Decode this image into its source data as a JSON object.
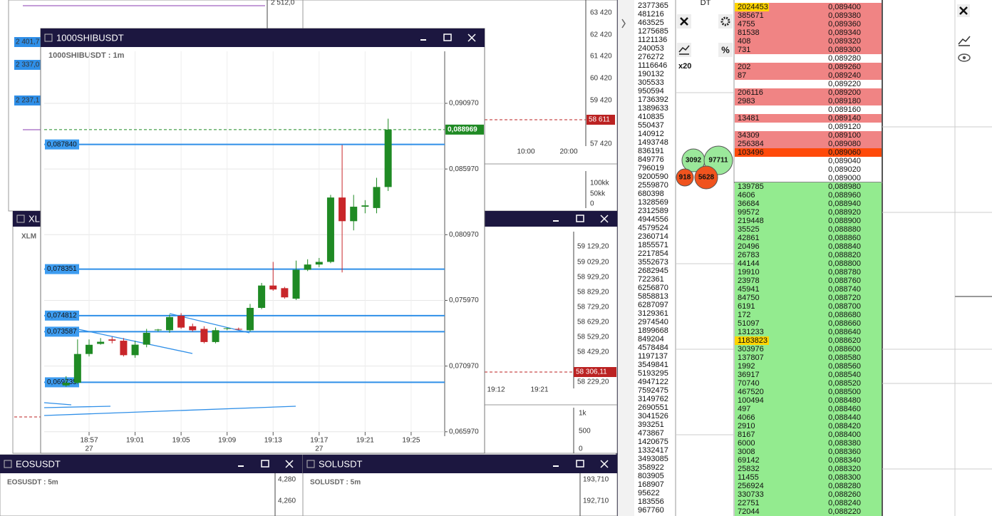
{
  "chart_data": {
    "type": "candlestick",
    "title": "1000SHIBUSDT : 1m",
    "x": [
      "18:55",
      "18:56",
      "18:57",
      "18:58",
      "18:59",
      "19:00",
      "19:01",
      "19:02",
      "19:03",
      "19:04",
      "19:05",
      "19:06",
      "19:07",
      "19:08",
      "19:09",
      "19:10",
      "19:11",
      "19:12",
      "19:13",
      "19:14",
      "19:15",
      "19:16",
      "19:17",
      "19:18",
      "19:19",
      "19:20",
      "19:21",
      "19:22",
      "19:23"
    ],
    "open": [
      0.0695,
      0.0697,
      0.07189,
      0.07266,
      0.073,
      0.0729,
      0.0718,
      0.0726,
      0.0737,
      0.0737,
      0.0748,
      0.074,
      0.0738,
      0.0728,
      0.0738,
      0.0738,
      0.0737,
      0.0754,
      0.0771,
      0.0769,
      0.0761,
      0.0783,
      0.0787,
      0.0789,
      0.0838,
      0.082,
      0.0831,
      0.083,
      0.0846
    ],
    "high": [
      0.0702,
      0.073,
      0.073,
      0.0731,
      0.0732,
      0.0731,
      0.0729,
      0.0738,
      0.0738,
      0.0749,
      0.075,
      0.0742,
      0.074,
      0.0739,
      0.0739,
      0.0739,
      0.0757,
      0.0773,
      0.0789,
      0.077,
      0.079,
      0.0791,
      0.0792,
      0.084,
      0.0878,
      0.084,
      0.0836,
      0.0853,
      0.0898
    ],
    "low": [
      0.0694,
      0.0696,
      0.0717,
      0.0726,
      0.0727,
      0.0717,
      0.0716,
      0.0724,
      0.0736,
      0.0735,
      0.0738,
      0.0736,
      0.0727,
      0.0727,
      0.0737,
      0.0737,
      0.0736,
      0.0753,
      0.0767,
      0.0761,
      0.076,
      0.0782,
      0.0785,
      0.0788,
      0.0781,
      0.0813,
      0.0826,
      0.0826,
      0.0843
    ],
    "close": [
      0.0697,
      0.07189,
      0.07259,
      0.07282,
      0.0729,
      0.0718,
      0.0726,
      0.0735,
      0.07375,
      0.0747,
      0.0739,
      0.0737,
      0.0728,
      0.0737,
      0.07385,
      0.07375,
      0.0754,
      0.0771,
      0.0768,
      0.0762,
      0.0783,
      0.0787,
      0.0789,
      0.0838,
      0.082,
      0.0831,
      0.0832,
      0.0846,
      0.08897
    ],
    "up_color": "#1f8a24",
    "down_color": "#c8262a",
    "xticks": [
      "18:57",
      "19:01",
      "19:05",
      "19:09",
      "19:13",
      "19:17",
      "19:21",
      "19:25"
    ],
    "date_labels": [
      {
        "at": "18:57",
        "label": "27"
      },
      {
        "at": "19:17",
        "label": "27"
      }
    ],
    "ylim": [
      0.0652,
      0.0952
    ],
    "yticks": [
      {
        "value": 0.09097,
        "label": "0,090970"
      },
      {
        "value": 0.08597,
        "label": "0,085970"
      },
      {
        "value": 0.08097,
        "label": "0,080970"
      },
      {
        "value": 0.07597,
        "label": "0,075970"
      },
      {
        "value": 0.07097,
        "label": "0,070970"
      },
      {
        "value": 0.06597,
        "label": "0,065970"
      }
    ],
    "grid": true,
    "current_price": {
      "value": 0.088969,
      "label": "0,088969",
      "color": "#1f8a24"
    },
    "levels": [
      {
        "value": 0.08784,
        "label": "0,087840"
      },
      {
        "value": 0.078351,
        "label": "0,078351"
      },
      {
        "value": 0.074812,
        "label": "0,074812"
      },
      {
        "value": 0.073587,
        "label": "0,073587"
      },
      {
        "value": 0.069735,
        "label": "0,069735"
      }
    ],
    "level_color": "#2f8fe8"
  },
  "windows": {
    "main": {
      "title": "1000SHIBUSDT"
    },
    "top_left": {
      "axis_labels": [
        "2 512,0"
      ],
      "price_tags": [
        "2 401,7",
        "2 337,0",
        "2 237,1"
      ]
    },
    "top_right": {
      "axis_labels": [
        "63 420",
        "62 420",
        "61 420",
        "60 420",
        "59 420",
        "57 420"
      ],
      "price_tag": "58 611",
      "time_labels": [
        "10:00",
        "20:00"
      ],
      "volume_labels": [
        "100kk",
        "50kk",
        "0"
      ]
    },
    "xl": {
      "title": "XL",
      "chart_label": "XLM",
      "axis_labels": [
        "59 129,20",
        "59 029,20",
        "58 929,20",
        "58 829,20",
        "58 729,20",
        "58 629,20",
        "58 529,20",
        "58 429,20",
        "58 229,20"
      ],
      "price_tag": "58 306,11",
      "time_labels": [
        "19:12",
        "19:21"
      ],
      "volume_labels": [
        "1k",
        "500",
        "0"
      ]
    },
    "eos": {
      "title": "EOSUSDT",
      "chart_label": "EOSUSDT : 5m",
      "axis_labels": [
        "4,280",
        "4,260"
      ]
    },
    "sol": {
      "title": "SOLUSDT",
      "chart_label": "SOLUSDT : 5m",
      "axis_labels": [
        "193,710",
        "192,710"
      ]
    }
  },
  "volume_column": [
    2377365,
    481216,
    463525,
    1275685,
    1121136,
    240053,
    276272,
    1116646,
    190132,
    305533,
    950594,
    1736392,
    1389633,
    410835,
    550437,
    140912,
    1493748,
    836191,
    849776,
    796019,
    9200590,
    2559870,
    680398,
    1328569,
    2312589,
    4944556,
    4579524,
    2360714,
    1855571,
    2217854,
    3552673,
    2682945,
    722361,
    6256870,
    5858813,
    6287097,
    3129361,
    2974540,
    1899668,
    849204,
    4578484,
    1197137,
    3549841,
    5193295,
    4947122,
    7592475,
    3149762,
    2690551,
    3041526,
    393251,
    473867,
    1420675,
    1332417,
    3493085,
    358922,
    803905,
    168907,
    95622,
    183556,
    967760
  ],
  "dom_panel": {
    "label": "DT",
    "leverage": "x20",
    "bubbles": [
      {
        "value": 3092,
        "color": "#9be89b"
      },
      {
        "value": 97711,
        "color": "#9be89b"
      },
      {
        "value": 918,
        "color": "#f0531e"
      },
      {
        "value": 5628,
        "color": "#f0531e"
      }
    ]
  },
  "order_book": {
    "ask_color": "#f08484",
    "bid_color": "#93eb8f",
    "asks": [
      {
        "price": "0,089400",
        "volume": 2024453,
        "highlight": "#ffd400"
      },
      {
        "price": "0,089380",
        "volume": 385671
      },
      {
        "price": "0,089360",
        "volume": 4755
      },
      {
        "price": "0,089340",
        "volume": 81538
      },
      {
        "price": "0,089320",
        "volume": 408
      },
      {
        "price": "0,089300",
        "volume": 731
      },
      {
        "price": "0,089280",
        "volume": null
      },
      {
        "price": "0,089260",
        "volume": 202
      },
      {
        "price": "0,089240",
        "volume": 87
      },
      {
        "price": "0,089220",
        "volume": null
      },
      {
        "price": "0,089200",
        "volume": 206116
      },
      {
        "price": "0,089180",
        "volume": 2983
      },
      {
        "price": "0,089160",
        "volume": null
      },
      {
        "price": "0,089140",
        "volume": 13481
      },
      {
        "price": "0,089120",
        "volume": null
      },
      {
        "price": "0,089100",
        "volume": 34309
      },
      {
        "price": "0,089080",
        "volume": 256384
      },
      {
        "price": "0,089060",
        "volume": 103496,
        "highlight": "#ff4a0a"
      },
      {
        "price": "0,089040",
        "volume": null
      },
      {
        "price": "0,089020",
        "volume": null
      },
      {
        "price": "0,089000",
        "volume": null
      }
    ],
    "bids": [
      {
        "price": "0,088980",
        "volume": 139785
      },
      {
        "price": "0,088960",
        "volume": 4606
      },
      {
        "price": "0,088940",
        "volume": 36684
      },
      {
        "price": "0,088920",
        "volume": 99572
      },
      {
        "price": "0,088900",
        "volume": 219448
      },
      {
        "price": "0,088880",
        "volume": 35525
      },
      {
        "price": "0,088860",
        "volume": 42861
      },
      {
        "price": "0,088840",
        "volume": 20496
      },
      {
        "price": "0,088820",
        "volume": 26783
      },
      {
        "price": "0,088800",
        "volume": 44144
      },
      {
        "price": "0,088780",
        "volume": 19910
      },
      {
        "price": "0,088760",
        "volume": 23978
      },
      {
        "price": "0,088740",
        "volume": 45941
      },
      {
        "price": "0,088720",
        "volume": 84750
      },
      {
        "price": "0,088700",
        "volume": 6191
      },
      {
        "price": "0,088680",
        "volume": 172
      },
      {
        "price": "0,088660",
        "volume": 51097
      },
      {
        "price": "0,088640",
        "volume": 131233
      },
      {
        "price": "0,088620",
        "volume": 1183823,
        "highlight": "#ffd400"
      },
      {
        "price": "0,088600",
        "volume": 303976
      },
      {
        "price": "0,088580",
        "volume": 137807
      },
      {
        "price": "0,088560",
        "volume": 1992
      },
      {
        "price": "0,088540",
        "volume": 36917
      },
      {
        "price": "0,088520",
        "volume": 70740
      },
      {
        "price": "0,088500",
        "volume": 467520
      },
      {
        "price": "0,088480",
        "volume": 100494
      },
      {
        "price": "0,088460",
        "volume": 497
      },
      {
        "price": "0,088440",
        "volume": 4066
      },
      {
        "price": "0,088420",
        "volume": 2910
      },
      {
        "price": "0,088400",
        "volume": 8167
      },
      {
        "price": "0,088380",
        "volume": 6000
      },
      {
        "price": "0,088360",
        "volume": 3008
      },
      {
        "price": "0,088340",
        "volume": 69142
      },
      {
        "price": "0,088320",
        "volume": 25832
      },
      {
        "price": "0,088300",
        "volume": 11455
      },
      {
        "price": "0,088280",
        "volume": 256924
      },
      {
        "price": "0,088260",
        "volume": 330733
      },
      {
        "price": "0,088240",
        "volume": 22751
      },
      {
        "price": "0,088220",
        "volume": 72044
      }
    ]
  }
}
